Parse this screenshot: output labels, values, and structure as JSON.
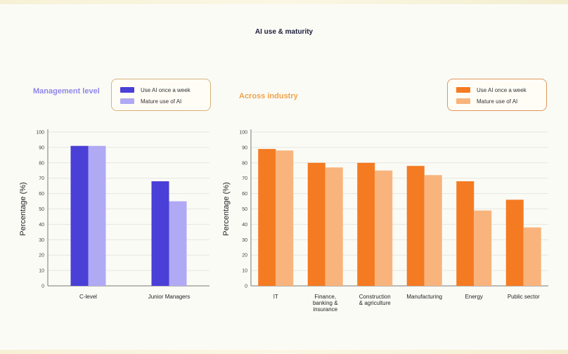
{
  "page_title": "AI use & maturity",
  "colors": {
    "management_dark": "#4a3fd6",
    "management_light": "#b0a9f3",
    "management_heading": "#8f87e8",
    "industry_dark": "#f47b22",
    "industry_light": "#f8b47c",
    "industry_heading": "#f0a34a",
    "legend_border_mgmt": "#d8b07a",
    "legend_border_ind": "#e0955a"
  },
  "chart_data": [
    {
      "type": "bar",
      "title": "Management level",
      "categories": [
        "C-level",
        "Junior Managers"
      ],
      "series": [
        {
          "name": "Use AI once a week",
          "values": [
            91,
            68
          ]
        },
        {
          "name": "Mature use of AI",
          "values": [
            91,
            55
          ]
        }
      ],
      "ylabel": "Percentage (%)",
      "ylim": [
        0,
        100
      ],
      "yticks": [
        "0",
        "10",
        "20",
        "30",
        "40",
        "50",
        "60",
        "70",
        "80",
        "90",
        "100"
      ],
      "grid": true,
      "legend_position": "top-right"
    },
    {
      "type": "bar",
      "title": "Across industry",
      "categories": [
        "IT",
        "Finance,\nbanking &\ninsurance",
        "Construction\n& agriculture",
        "Manufacturing",
        "Energy",
        "Public sector"
      ],
      "series": [
        {
          "name": "Use AI once a week",
          "values": [
            89,
            80,
            80,
            78,
            68,
            56
          ]
        },
        {
          "name": "Mature use of AI",
          "values": [
            88,
            77,
            75,
            72,
            49,
            38
          ]
        }
      ],
      "ylabel": "Percentage (%)",
      "ylim": [
        0,
        100
      ],
      "yticks": [
        "0",
        "10",
        "20",
        "30",
        "40",
        "50",
        "60",
        "70",
        "80",
        "90",
        "100"
      ],
      "grid": true,
      "legend_position": "top-right"
    }
  ]
}
